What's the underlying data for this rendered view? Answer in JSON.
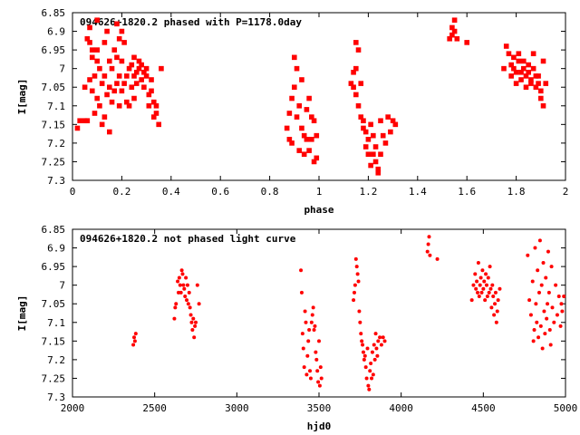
{
  "chart_data": [
    {
      "type": "scatter",
      "title": "094626+1820.2 phased with P=1178.0day",
      "xlabel": "phase",
      "ylabel": "I[mag]",
      "xlim": [
        0,
        2
      ],
      "ylim": [
        7.3,
        6.85
      ],
      "y_inverted": true,
      "xticks": [
        "0",
        "0.2",
        "0.4",
        "0.6",
        "0.8",
        "1",
        "1.2",
        "1.4",
        "1.6",
        "1.8",
        "2"
      ],
      "yticks": [
        "6.85",
        "6.9",
        "6.95",
        "7",
        "7.05",
        "7.1",
        "7.15",
        "7.2",
        "7.25",
        "7.3"
      ],
      "grid": false,
      "marker_color": "#ff0000",
      "series": [
        {
          "x": [
            0.02,
            0.03,
            0.05,
            0.05,
            0.06,
            0.06,
            0.07,
            0.07,
            0.07,
            0.08,
            0.08,
            0.08,
            0.09,
            0.09,
            0.1,
            0.1,
            0.1,
            0.1,
            0.11,
            0.11,
            0.12,
            0.12,
            0.13,
            0.13,
            0.13,
            0.14,
            0.14,
            0.15,
            0.15,
            0.15,
            0.16,
            0.16,
            0.17,
            0.17,
            0.18,
            0.18,
            0.18,
            0.19,
            0.19,
            0.19,
            0.2,
            0.2,
            0.2,
            0.21,
            0.21,
            0.22,
            0.22,
            0.23,
            0.23,
            0.24,
            0.24,
            0.25,
            0.25,
            0.25,
            0.26,
            0.26,
            0.27,
            0.27,
            0.28,
            0.28,
            0.29,
            0.29,
            0.3,
            0.3,
            0.31,
            0.31,
            0.32,
            0.32,
            0.33,
            0.33,
            0.34,
            0.34,
            0.35,
            0.36,
            0.87,
            0.88,
            0.88,
            0.89,
            0.89,
            0.9,
            0.9,
            0.91,
            0.91,
            0.92,
            0.92,
            0.93,
            0.93,
            0.94,
            0.94,
            0.95,
            0.95,
            0.96,
            0.96,
            0.97,
            0.97,
            0.98,
            0.98,
            0.99,
            0.99,
            1.13,
            1.14,
            1.14,
            1.15,
            1.15,
            1.15,
            1.16,
            1.16,
            1.17,
            1.17,
            1.18,
            1.18,
            1.19,
            1.19,
            1.2,
            1.2,
            1.21,
            1.21,
            1.22,
            1.22,
            1.23,
            1.23,
            1.24,
            1.24,
            1.25,
            1.25,
            1.26,
            1.27,
            1.28,
            1.29,
            1.3,
            1.31,
            1.53,
            1.54,
            1.54,
            1.55,
            1.55,
            1.56,
            1.6,
            1.75,
            1.76,
            1.77,
            1.78,
            1.78,
            1.79,
            1.79,
            1.8,
            1.8,
            1.81,
            1.81,
            1.82,
            1.82,
            1.83,
            1.83,
            1.84,
            1.84,
            1.85,
            1.85,
            1.86,
            1.86,
            1.87,
            1.87,
            1.88,
            1.88,
            1.89,
            1.89,
            1.9,
            1.9,
            1.91,
            1.91,
            1.92
          ],
          "y": [
            7.16,
            7.14,
            7.05,
            7.14,
            6.92,
            7.14,
            6.89,
            6.93,
            7.03,
            6.95,
            7.06,
            6.97,
            7.02,
            7.12,
            6.87,
            6.95,
            7.08,
            6.98,
            7.0,
            7.1,
            7.04,
            7.15,
            7.13,
            6.93,
            7.02,
            6.9,
            7.07,
            6.98,
            7.17,
            7.05,
            7.0,
            7.09,
            6.95,
            7.06,
            6.88,
            7.04,
            6.97,
            7.1,
            7.02,
            6.92,
            6.9,
            7.06,
            6.98,
            7.04,
            6.93,
            7.09,
            7.02,
            7.0,
            7.1,
            7.05,
            6.99,
            7.02,
            6.97,
            7.08,
            7.01,
            7.04,
            6.98,
            7.0,
            7.03,
            6.99,
            7.01,
            7.05,
            7.0,
            7.02,
            7.07,
            7.1,
            7.03,
            7.06,
            7.09,
            7.13,
            7.12,
            7.1,
            7.15,
            7.0,
            7.16,
            7.12,
            7.19,
            7.08,
            7.2,
            6.97,
            7.05,
            7.13,
            7.0,
            7.1,
            7.22,
            7.03,
            7.16,
            7.18,
            7.23,
            7.11,
            7.19,
            7.08,
            7.22,
            7.13,
            7.19,
            7.14,
            7.25,
            7.18,
            7.24,
            7.04,
            7.05,
            7.01,
            6.93,
            7.0,
            7.07,
            6.95,
            7.1,
            7.04,
            7.13,
            7.14,
            7.16,
            7.17,
            7.21,
            7.23,
            7.19,
            7.15,
            7.26,
            7.18,
            7.23,
            7.25,
            7.21,
            7.27,
            7.28,
            7.23,
            7.14,
            7.18,
            7.2,
            7.13,
            7.17,
            7.14,
            7.15,
            6.92,
            6.89,
            6.91,
            6.87,
            6.9,
            6.92,
            6.93,
            7.0,
            6.94,
            6.96,
            7.02,
            6.99,
            6.97,
            7.0,
            7.04,
            7.01,
            6.98,
            6.96,
            7.01,
            7.03,
            7.0,
            6.98,
            7.02,
            7.05,
            6.99,
            7.01,
            7.03,
            7.04,
            6.96,
            7.0,
            7.02,
            7.05,
            7.02,
            7.04,
            7.08,
            7.06,
            7.1,
            6.98,
            7.04
          ]
        }
      ]
    },
    {
      "type": "scatter",
      "title": "094626+1820.2 not phased light curve",
      "xlabel": "hjd0",
      "ylabel": "I[mag]",
      "xlim": [
        2000,
        5000
      ],
      "ylim": [
        7.3,
        6.85
      ],
      "y_inverted": true,
      "xticks": [
        "2000",
        "2500",
        "3000",
        "3500",
        "4000",
        "4500",
        "5000"
      ],
      "yticks": [
        "6.85",
        "6.9",
        "6.95",
        "7",
        "7.05",
        "7.1",
        "7.15",
        "7.2",
        "7.25",
        "7.3"
      ],
      "grid": false,
      "marker_color": "#ff0000",
      "series": [
        {
          "x": [
            2370,
            2375,
            2380,
            2385,
            2620,
            2625,
            2630,
            2640,
            2645,
            2650,
            2655,
            2660,
            2665,
            2670,
            2675,
            2680,
            2685,
            2690,
            2695,
            2700,
            2705,
            2710,
            2715,
            2720,
            2725,
            2730,
            2735,
            2740,
            2745,
            2750,
            2760,
            2770,
            3390,
            3395,
            3400,
            3405,
            3410,
            3415,
            3420,
            3425,
            3430,
            3435,
            3440,
            3445,
            3450,
            3455,
            3460,
            3465,
            3470,
            3475,
            3480,
            3485,
            3490,
            3495,
            3500,
            3505,
            3510,
            3515,
            3710,
            3715,
            3720,
            3725,
            3730,
            3735,
            3740,
            3745,
            3750,
            3755,
            3760,
            3765,
            3770,
            3775,
            3780,
            3785,
            3790,
            3795,
            3800,
            3805,
            3810,
            3815,
            3820,
            3825,
            3830,
            3835,
            3840,
            3845,
            3850,
            3855,
            3860,
            3870,
            3880,
            3890,
            3900,
            4160,
            4165,
            4170,
            4175,
            4220,
            4430,
            4440,
            4450,
            4455,
            4460,
            4465,
            4470,
            4475,
            4480,
            4485,
            4490,
            4495,
            4500,
            4505,
            4510,
            4515,
            4520,
            4525,
            4530,
            4535,
            4540,
            4545,
            4550,
            4555,
            4560,
            4565,
            4570,
            4575,
            4580,
            4585,
            4590,
            4600,
            4770,
            4780,
            4790,
            4800,
            4805,
            4810,
            4815,
            4820,
            4825,
            4830,
            4835,
            4840,
            4845,
            4850,
            4855,
            4860,
            4865,
            4870,
            4875,
            4880,
            4885,
            4890,
            4895,
            4900,
            4905,
            4910,
            4915,
            4920,
            4930,
            4940,
            4950,
            4960,
            4970,
            4975,
            4980,
            4990
          ],
          "y": [
            7.16,
            7.14,
            7.15,
            7.13,
            7.09,
            7.06,
            7.05,
            6.99,
            7.02,
            6.98,
            7.0,
            7.02,
            6.96,
            6.97,
            7.0,
            7.01,
            7.03,
            6.98,
            7.04,
            7.0,
            7.05,
            7.02,
            7.06,
            7.08,
            7.1,
            7.12,
            7.09,
            7.14,
            7.11,
            7.1,
            7.0,
            7.05,
            6.96,
            7.02,
            7.13,
            7.17,
            7.22,
            7.07,
            7.1,
            7.24,
            7.19,
            7.15,
            7.12,
            7.23,
            7.25,
            7.1,
            7.08,
            7.06,
            7.12,
            7.11,
            7.18,
            7.2,
            7.23,
            7.26,
            7.15,
            7.27,
            7.22,
            7.25,
            7.04,
            7.02,
            7.0,
            6.93,
            6.95,
            6.97,
            6.99,
            7.07,
            7.1,
            7.13,
            7.15,
            7.16,
            7.18,
            7.2,
            7.19,
            7.22,
            7.25,
            7.17,
            7.27,
            7.28,
            7.23,
            7.21,
            7.25,
            7.18,
            7.24,
            7.16,
            7.2,
            7.13,
            7.17,
            7.19,
            7.15,
            7.14,
            7.16,
            7.14,
            7.15,
            6.91,
            6.89,
            6.87,
            6.92,
            6.93,
            7.04,
            7.0,
            6.97,
            7.01,
            6.99,
            7.02,
            6.94,
            7.03,
            7.0,
            6.98,
            7.02,
            6.96,
            7.01,
            6.99,
            7.04,
            6.97,
            7.0,
            7.03,
            6.98,
            7.02,
            6.95,
            7.01,
            7.06,
            7.0,
            7.03,
            7.08,
            7.05,
            7.02,
            7.1,
            7.07,
            7.04,
            7.01,
            6.92,
            7.04,
            7.08,
            6.99,
            7.15,
            7.12,
            6.9,
            7.05,
            7.1,
            6.96,
            7.14,
            7.02,
            6.88,
            7.11,
            7.0,
            7.17,
            6.94,
            7.07,
            7.13,
            6.98,
            7.09,
            7.05,
            6.91,
            7.02,
            7.12,
            7.16,
            6.95,
            7.06,
            7.1,
            7.0,
            7.08,
            7.03,
            7.11,
            7.05,
            7.07,
            7.03
          ]
        }
      ]
    }
  ]
}
